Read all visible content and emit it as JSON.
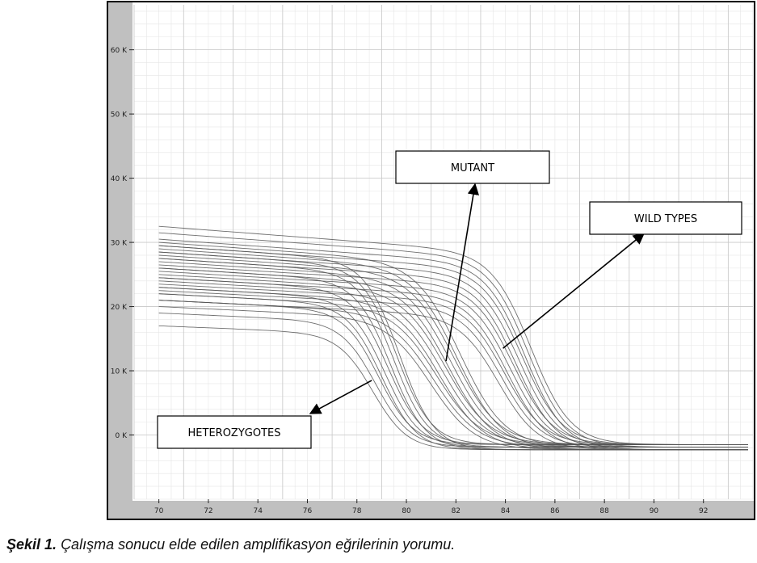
{
  "caption": {
    "label": "Şekil 1.",
    "text": "Çalışma sonucu elde edilen amplifikasyon eğrilerinin yorumu."
  },
  "colors": {
    "frame": "#000000",
    "sidebar": "#c0c0c0",
    "grid_major": "#c8c8c8",
    "grid_minor": "#e6e6e6",
    "curve": "#555555",
    "label_border": "#000000"
  },
  "chart_data": {
    "type": "line",
    "title": "",
    "xlabel": "",
    "ylabel": "",
    "xlim": [
      69,
      94
    ],
    "ylim": [
      -10000,
      67000
    ],
    "grid": true,
    "x_ticks": [
      70,
      72,
      74,
      76,
      78,
      80,
      82,
      84,
      86,
      88,
      90,
      92
    ],
    "x_tick_labels": [
      "70",
      "72",
      "74",
      "76",
      "78",
      "80",
      "82",
      "84",
      "86",
      "88",
      "90",
      "92"
    ],
    "y_ticks": [
      0,
      10000,
      20000,
      30000,
      40000,
      50000,
      60000
    ],
    "y_tick_labels": [
      "0 K",
      "10 K",
      "20 K",
      "30 K",
      "40 K",
      "50 K",
      "60 K"
    ],
    "groups": [
      {
        "name": "HETEROZYGOTES",
        "midpoint": 79.2,
        "spread": 0.7,
        "start_values": [
          17000,
          19000,
          21000,
          22000,
          23000,
          24500,
          26000,
          27500,
          28500,
          29500
        ]
      },
      {
        "name": "MUTANT",
        "midpoint": 81.6,
        "spread": 0.9,
        "start_values": [
          20000,
          21000,
          22000,
          23000,
          24000,
          25000,
          26000,
          27000,
          28000,
          29000,
          30000
        ]
      },
      {
        "name": "WILD TYPES",
        "midpoint": 84.4,
        "spread": 0.8,
        "start_values": [
          21000,
          22500,
          23500,
          24500,
          25500,
          26500,
          27500,
          28500,
          29500,
          30500,
          31500,
          32500
        ]
      }
    ],
    "annotations": [
      {
        "text": "MUTANT",
        "points_to": [
          81.6,
          11500
        ]
      },
      {
        "text": "WILD TYPES",
        "points_to": [
          83.9,
          13500
        ]
      },
      {
        "text": "HETEROZYGOTES",
        "points_to": [
          78.6,
          8500
        ]
      }
    ]
  }
}
